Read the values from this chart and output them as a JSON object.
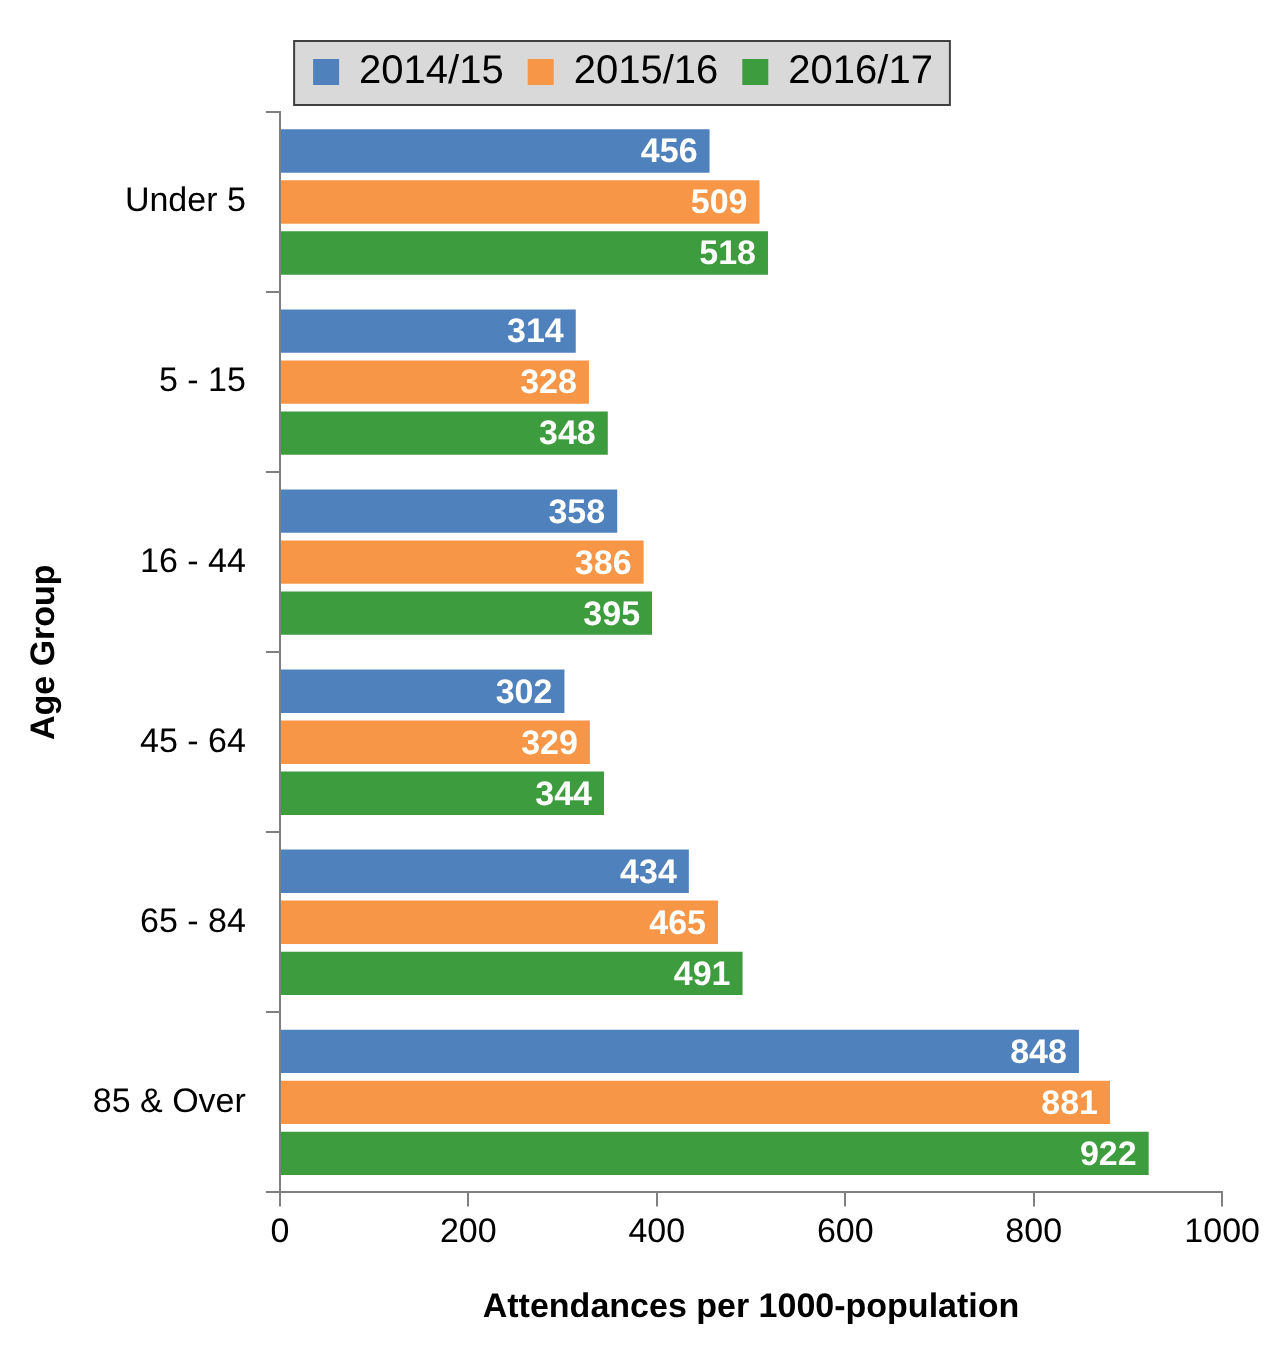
{
  "chart_data": {
    "type": "bar",
    "orientation": "horizontal",
    "xlabel": "Attendances per 1000-population",
    "ylabel": "Age Group",
    "categories": [
      "Under 5",
      "5 - 15",
      "16 - 44",
      "45 - 64",
      "65 - 84",
      "85 & Over"
    ],
    "series": [
      {
        "name": "2014/15",
        "color": "#4f81bd",
        "values": [
          456,
          314,
          358,
          302,
          434,
          848
        ]
      },
      {
        "name": "2015/16",
        "color": "#f79646",
        "values": [
          509,
          328,
          386,
          329,
          465,
          881
        ]
      },
      {
        "name": "2016/17",
        "color": "#3d9c3d",
        "values": [
          518,
          348,
          395,
          344,
          491,
          922
        ]
      }
    ],
    "xlim": [
      0,
      1000
    ],
    "xticks": [
      0,
      200,
      400,
      600,
      800,
      1000
    ],
    "grid": false,
    "legend": "top",
    "data_labels": true
  }
}
